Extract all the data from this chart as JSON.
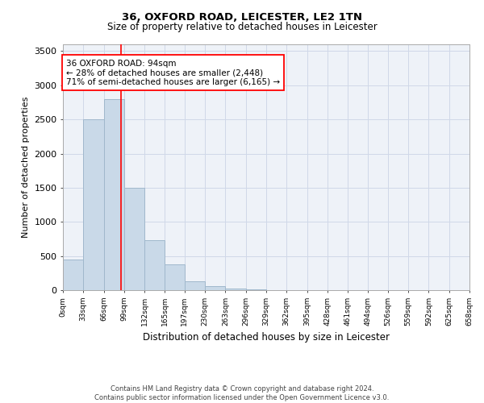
{
  "title1": "36, OXFORD ROAD, LEICESTER, LE2 1TN",
  "title2": "Size of property relative to detached houses in Leicester",
  "xlabel": "Distribution of detached houses by size in Leicester",
  "ylabel": "Number of detached properties",
  "bin_edges": [
    0,
    33,
    66,
    99,
    132,
    165,
    197,
    230,
    263,
    296,
    329,
    362,
    395,
    428,
    461,
    494,
    526,
    559,
    592,
    625,
    658
  ],
  "bar_heights": [
    450,
    2500,
    2800,
    1500,
    730,
    380,
    130,
    55,
    20,
    10,
    5,
    0,
    0,
    0,
    0,
    0,
    0,
    0,
    0,
    0
  ],
  "bar_color": "#c9d9e8",
  "bar_edge_color": "#a0b8cc",
  "property_line_x": 94,
  "property_line_color": "red",
  "annotation_text": "36 OXFORD ROAD: 94sqm\n← 28% of detached houses are smaller (2,448)\n71% of semi-detached houses are larger (6,165) →",
  "annotation_box_color": "white",
  "annotation_box_edge_color": "red",
  "ylim": [
    0,
    3600
  ],
  "yticks": [
    0,
    500,
    1000,
    1500,
    2000,
    2500,
    3000,
    3500
  ],
  "grid_color": "#d0d8e8",
  "bg_color": "#eef2f8",
  "footer_text": "Contains HM Land Registry data © Crown copyright and database right 2024.\nContains public sector information licensed under the Open Government Licence v3.0.",
  "tick_labels": [
    "0sqm",
    "33sqm",
    "66sqm",
    "99sqm",
    "132sqm",
    "165sqm",
    "197sqm",
    "230sqm",
    "263sqm",
    "296sqm",
    "329sqm",
    "362sqm",
    "395sqm",
    "428sqm",
    "461sqm",
    "494sqm",
    "526sqm",
    "559sqm",
    "592sqm",
    "625sqm",
    "658sqm"
  ]
}
